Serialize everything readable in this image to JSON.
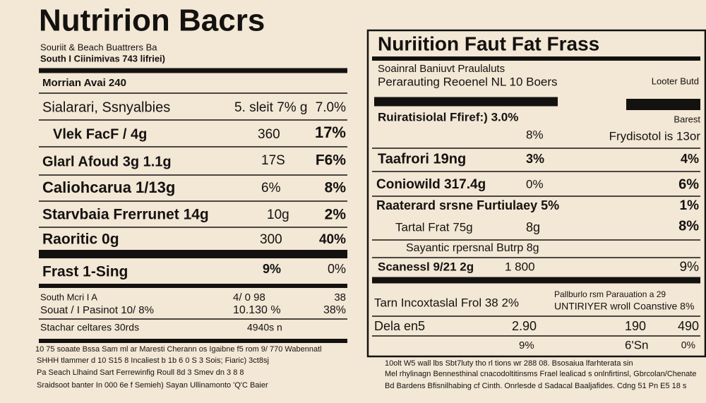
{
  "left": {
    "title": "Nutririon Bacrs",
    "subtitle": [
      "Souriit & Beach Buattrers Ba",
      "South I Ciinimivas 743 lifriei)"
    ],
    "serving": "Morrian Avai 240",
    "rows": [
      [
        "Sialarari, Ssnyalbies",
        "5. sleit 7% g",
        "7.0%"
      ],
      [
        "Vlek FacF / 4g",
        "360",
        "17%"
      ],
      [
        "Glarl Afoud 3g  1.1g",
        "17S",
        "F6%"
      ],
      [
        "Caliohcarua 1/13g",
        "6%",
        "8%"
      ],
      [
        "Starvbaia Frerrunet 14g",
        "10g",
        "2%"
      ],
      [
        "Raoritic 0g",
        "300",
        "40%"
      ],
      [
        "Frast 1-Sing",
        "9%",
        "0%"
      ],
      [
        "South Mcri I A",
        "4/ 0 98",
        "38"
      ],
      [
        "Souat / I Pasinot 10/ 8%",
        "10.130  %",
        "38%"
      ],
      [
        "Stachar celtares  30rds",
        "4940s n"
      ]
    ],
    "footer": [
      "10 75 soaate Bssa Sam ml ar Maresti Cherann os Igaibne f5 rom 9/ 770 Wabennatl",
      "SHHH tlammer d 10 S15 8 Incaliest b 1b 6 0 S 3 Sois; Fiaric) 3ct8sj",
      "Pa Seach Llhaind Sart Ferrewinfig Roull 8d 3 Smev dn 3 8 8",
      "Sraidsoot banter In  000 6e f Semieh) Sayan Ullinamonto 'Q'C Baier"
    ]
  },
  "right": {
    "title": "Nuriition Faut Fat Frass",
    "subtitle": [
      "Soainral Baniuvt Praulaluts",
      "Perarauting Reoenel NL 10 Boers"
    ],
    "corner": "Looter Butd",
    "rows": [
      [
        "Ruiratisiolal Ffiref:) 3.0%",
        "Barest"
      ],
      [
        "8%",
        "Frydisotol is 13or"
      ],
      [
        "Taafrori 19ng",
        "3%",
        "4%"
      ],
      [
        "Coniowild 317.4g",
        "0%",
        "6%"
      ],
      [
        "Raaterard srsne Furtiulaey 5%",
        "1%"
      ],
      [
        "Tartal Frat 75g",
        "8g",
        "8%"
      ],
      [
        "Sayantic rpersnal Butrp 8g"
      ],
      [
        "Scanessl 9/21 2g",
        "1 800",
        "9%"
      ],
      [
        "Tarn Incoxtaslal Frol 38 2%",
        "Pallburlo rsm  Parauation a 29",
        "UNTIRIYER wroll Coanstive 8%"
      ],
      [
        "Dela en5",
        "2.90",
        "190",
        "490"
      ],
      [
        "9%",
        "6'Sn",
        "0%"
      ]
    ],
    "footer": [
      "10olt W5 wall lbs  Sbt7luty tho rl tions wr 288 08.  Bsosaiua lfarhterata sin",
      "Mel rhylinagn Bennesthinal cnacodoltitinsms Frael lealicad s onlnfirtinsl, Gbrcolan/Chenate",
      "Bd Bardens Bfisnilhabing cf Cinth. Onrlesde d Sadacal Baaljafides.  Cdng 51 Pn E5 18 s"
    ]
  }
}
